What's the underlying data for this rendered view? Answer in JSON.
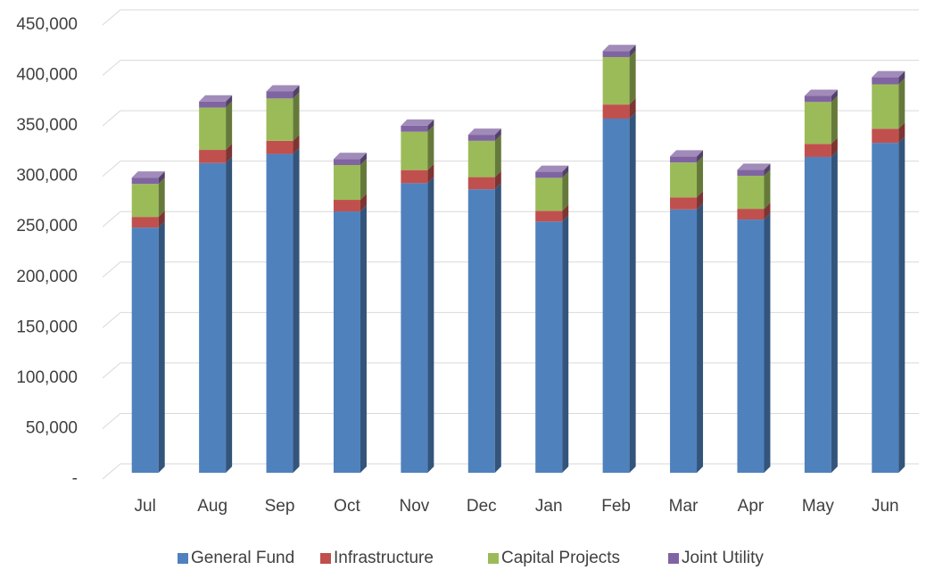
{
  "chart_data": {
    "type": "bar",
    "stacked": true,
    "categories": [
      "Jul",
      "Aug",
      "Sep",
      "Oct",
      "Nov",
      "Dec",
      "Jan",
      "Feb",
      "Mar",
      "Apr",
      "May",
      "Jun"
    ],
    "series": [
      {
        "name": "General Fund",
        "color": "#4f81bd",
        "values": [
          243000,
          307000,
          316000,
          259000,
          287000,
          281000,
          249000,
          351000,
          261000,
          251000,
          313000,
          327000
        ]
      },
      {
        "name": "Infrastructure",
        "color": "#c0504d",
        "values": [
          10600,
          13000,
          13000,
          11500,
          13000,
          12000,
          10600,
          14000,
          12000,
          10600,
          13000,
          14000
        ]
      },
      {
        "name": "Capital Projects",
        "color": "#9bbb59",
        "values": [
          32700,
          42000,
          42000,
          34500,
          38000,
          36000,
          32700,
          47000,
          34500,
          32700,
          41500,
          44000
        ]
      },
      {
        "name": "Joint Utility",
        "color": "#8064a2",
        "values": [
          6200,
          6000,
          7000,
          6000,
          6000,
          6000,
          6000,
          6000,
          6000,
          6000,
          6000,
          7000
        ]
      }
    ],
    "ylim": [
      0,
      450000
    ],
    "yticks": [
      {
        "value": 0,
        "label": "-"
      },
      {
        "value": 50000,
        "label": "50,000"
      },
      {
        "value": 100000,
        "label": "100,000"
      },
      {
        "value": 150000,
        "label": "150,000"
      },
      {
        "value": 200000,
        "label": "200,000"
      },
      {
        "value": 250000,
        "label": "250,000"
      },
      {
        "value": 300000,
        "label": "300,000"
      },
      {
        "value": 350000,
        "label": "350,000"
      },
      {
        "value": 400000,
        "label": "400,000"
      },
      {
        "value": 450000,
        "label": "450,000"
      }
    ],
    "grid": true,
    "legend": "bottom"
  }
}
